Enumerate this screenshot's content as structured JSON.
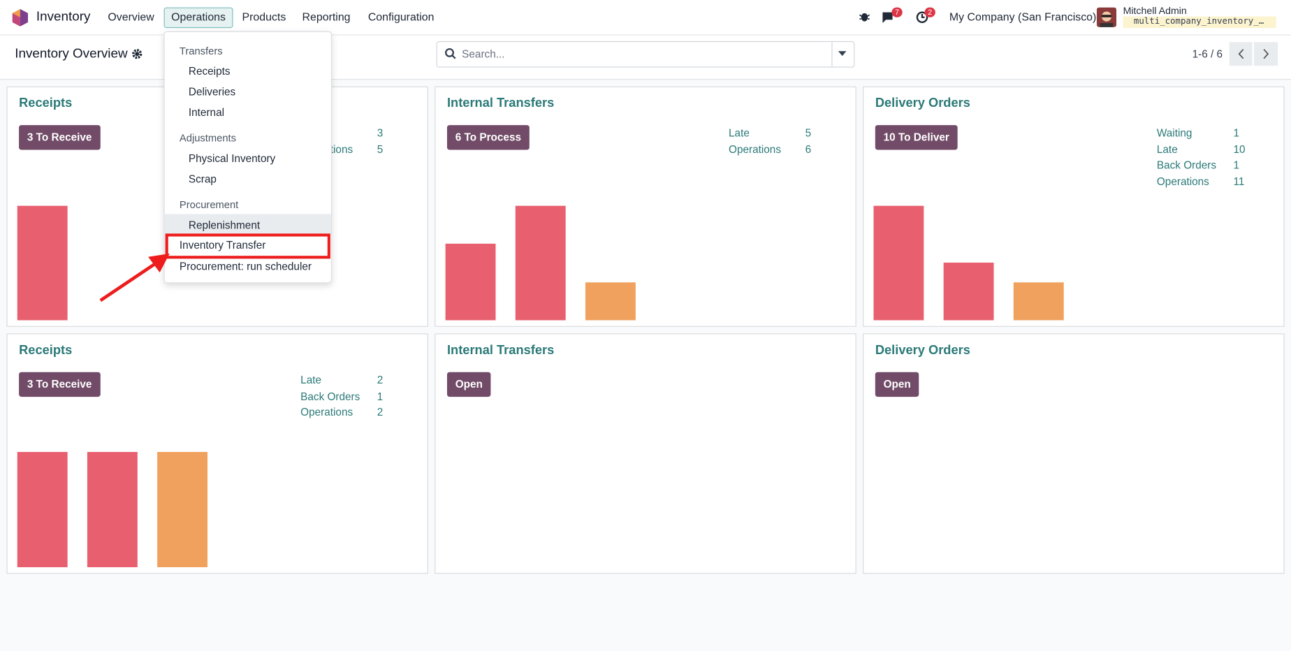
{
  "navbar": {
    "app": "Inventory",
    "menu": [
      "Overview",
      "Operations",
      "Products",
      "Reporting",
      "Configuration"
    ],
    "chat_badge": "7",
    "activity_badge": "2",
    "company": "My Company (San Francisco)",
    "user": "Mitchell Admin",
    "database": "multi_company_inventory_…"
  },
  "control_panel": {
    "title": "Inventory Overview",
    "search_placeholder": "Search...",
    "pager": "1-6 / 6"
  },
  "dropdown": {
    "sections": [
      {
        "header": "Transfers",
        "items": [
          "Receipts",
          "Deliveries",
          "Internal"
        ]
      },
      {
        "header": "Adjustments",
        "items": [
          "Physical Inventory",
          "Scrap"
        ]
      },
      {
        "header": "Procurement",
        "items": [
          "Replenishment"
        ]
      }
    ],
    "items": [
      "Inventory Transfer",
      "Procurement: run scheduler"
    ]
  },
  "cards": [
    {
      "title": "Receipts",
      "button": "3 To Receive",
      "stats": [
        {
          "value": 3
        },
        {
          "label": "Operations",
          "value": 5
        }
      ]
    },
    {
      "title": "Internal Transfers",
      "button": "6 To Process",
      "stats": [
        {
          "label": "Late",
          "value": 5
        },
        {
          "label": "Operations",
          "value": 6
        }
      ]
    },
    {
      "title": "Delivery Orders",
      "button": "10 To Deliver",
      "stats": [
        {
          "label": "Waiting",
          "value": 1
        },
        {
          "label": "Late",
          "value": 10
        },
        {
          "label": "Back Orders",
          "value": 1
        },
        {
          "label": "Operations",
          "value": 11
        }
      ]
    },
    {
      "title": "Receipts",
      "button": "3 To Receive",
      "stats": [
        {
          "label": "Late",
          "value": 2
        },
        {
          "label": "Back Orders",
          "value": 1
        },
        {
          "label": "Operations",
          "value": 2
        }
      ]
    },
    {
      "title": "Internal Transfers",
      "button": "Open",
      "stats": []
    },
    {
      "title": "Delivery Orders",
      "button": "Open",
      "stats": []
    }
  ]
}
